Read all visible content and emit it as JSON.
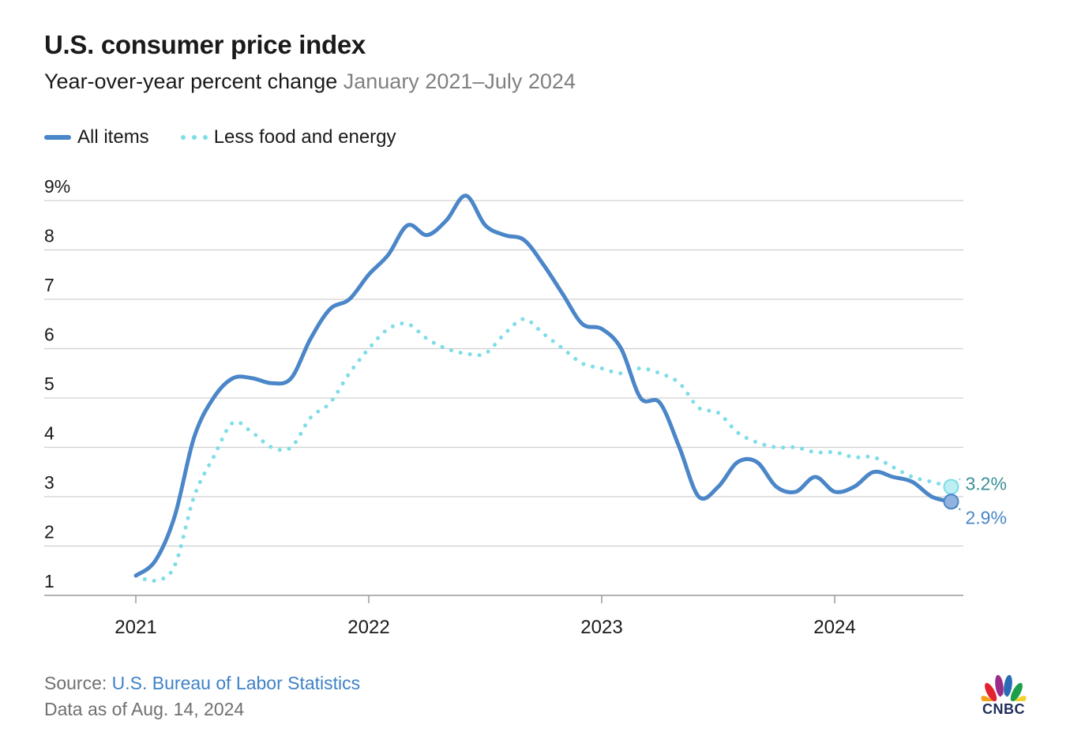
{
  "header": {
    "title": "U.S. consumer price index",
    "subtitle_main": "Year-over-year percent change",
    "subtitle_range": "January 2021–July 2024"
  },
  "legend": {
    "all_items": "All items",
    "core": "Less food and energy"
  },
  "footer": {
    "source_prefix": "Source: ",
    "source_link": "U.S. Bureau of Labor Statistics",
    "as_of": "Data as of Aug. 14, 2024"
  },
  "brand": {
    "logo_text": "CNBC"
  },
  "colors": {
    "all_items": "#4a86c8",
    "core": "#7fdde8",
    "core_label": "#3a8f96",
    "grid": "#d0d0d0"
  },
  "chart_data": {
    "type": "line",
    "title": "U.S. consumer price index",
    "subtitle": "Year-over-year percent change January 2021–July 2024",
    "xlabel": "",
    "ylabel": "",
    "ylim": [
      1,
      9
    ],
    "y_ticks": [
      1,
      2,
      3,
      4,
      5,
      6,
      7,
      8,
      9
    ],
    "y_tick_labels": [
      "1",
      "2",
      "3",
      "4",
      "5",
      "6",
      "7",
      "8",
      "9%"
    ],
    "x_ticks": [
      2021,
      2022,
      2023,
      2024
    ],
    "x_tick_labels": [
      "2021",
      "2022",
      "2023",
      "2024"
    ],
    "x": [
      "2021-01",
      "2021-02",
      "2021-03",
      "2021-04",
      "2021-05",
      "2021-06",
      "2021-07",
      "2021-08",
      "2021-09",
      "2021-10",
      "2021-11",
      "2021-12",
      "2022-01",
      "2022-02",
      "2022-03",
      "2022-04",
      "2022-05",
      "2022-06",
      "2022-07",
      "2022-08",
      "2022-09",
      "2022-10",
      "2022-11",
      "2022-12",
      "2023-01",
      "2023-02",
      "2023-03",
      "2023-04",
      "2023-05",
      "2023-06",
      "2023-07",
      "2023-08",
      "2023-09",
      "2023-10",
      "2023-11",
      "2023-12",
      "2024-01",
      "2024-02",
      "2024-03",
      "2024-04",
      "2024-05",
      "2024-06",
      "2024-07"
    ],
    "series": [
      {
        "name": "All items",
        "style": "solid",
        "values": [
          1.4,
          1.7,
          2.6,
          4.2,
          5.0,
          5.4,
          5.4,
          5.3,
          5.4,
          6.2,
          6.8,
          7.0,
          7.5,
          7.9,
          8.5,
          8.3,
          8.6,
          9.1,
          8.5,
          8.3,
          8.2,
          7.7,
          7.1,
          6.5,
          6.4,
          6.0,
          5.0,
          4.9,
          4.0,
          3.0,
          3.2,
          3.7,
          3.7,
          3.2,
          3.1,
          3.4,
          3.1,
          3.2,
          3.5,
          3.4,
          3.3,
          3.0,
          2.9
        ],
        "end_label": "2.9%"
      },
      {
        "name": "Less food and energy",
        "style": "dotted",
        "values": [
          1.4,
          1.3,
          1.6,
          3.0,
          3.8,
          4.5,
          4.3,
          4.0,
          4.0,
          4.6,
          4.9,
          5.5,
          6.0,
          6.4,
          6.5,
          6.2,
          6.0,
          5.9,
          5.9,
          6.3,
          6.6,
          6.3,
          6.0,
          5.7,
          5.6,
          5.5,
          5.6,
          5.5,
          5.3,
          4.8,
          4.7,
          4.3,
          4.1,
          4.0,
          4.0,
          3.9,
          3.9,
          3.8,
          3.8,
          3.6,
          3.4,
          3.3,
          3.2
        ],
        "end_label": "3.2%"
      }
    ]
  }
}
